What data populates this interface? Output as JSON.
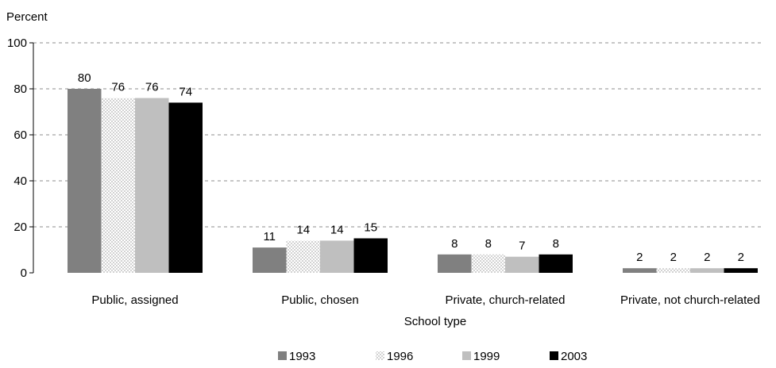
{
  "chart_data": {
    "type": "bar",
    "ylabel": "Percent",
    "xlabel": "School type",
    "ylim": [
      0,
      100
    ],
    "yticks": [
      "0",
      "20",
      "40",
      "60",
      "80",
      "100"
    ],
    "grid": "horizontal dashed",
    "legend_position": "bottom",
    "categories": [
      "Public, assigned",
      "Public, chosen",
      "Private, church-related",
      "Private, not church-related"
    ],
    "series": [
      {
        "name": "1993",
        "values": [
          80,
          11,
          8,
          2
        ],
        "color": "#808080",
        "pattern": "solid"
      },
      {
        "name": "1996",
        "values": [
          76,
          14,
          8,
          2
        ],
        "color": "#d9d9d9",
        "pattern": "dots"
      },
      {
        "name": "1999",
        "values": [
          76,
          14,
          7,
          2
        ],
        "color": "#bfbfbf",
        "pattern": "solid"
      },
      {
        "name": "2003",
        "values": [
          74,
          15,
          8,
          2
        ],
        "color": "#000000",
        "pattern": "solid"
      }
    ]
  }
}
